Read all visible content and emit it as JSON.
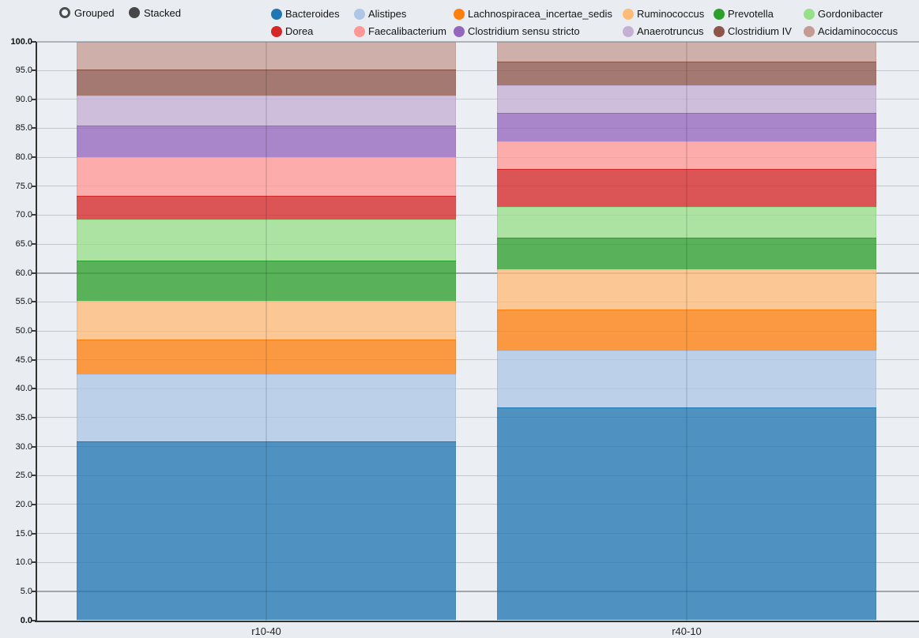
{
  "controls": {
    "options": [
      {
        "label": "Grouped",
        "selected": false
      },
      {
        "label": "Stacked",
        "selected": true
      }
    ]
  },
  "legend": {
    "rows": 2,
    "position": "top"
  },
  "chart_data": {
    "type": "bar",
    "stacked": true,
    "orientation": "vertical",
    "title": "",
    "xlabel": "",
    "ylabel": "",
    "categories": [
      "r10-40",
      "r40-10"
    ],
    "series": [
      {
        "name": "Bacteroides",
        "color": "#1f77b4",
        "values": [
          30.9,
          36.8
        ]
      },
      {
        "name": "Alistipes",
        "color": "#aec7e8",
        "values": [
          11.6,
          9.8
        ]
      },
      {
        "name": "Lachnospiracea_incertae_sedis",
        "color": "#ff7f0e",
        "values": [
          6.0,
          7.1
        ]
      },
      {
        "name": "Ruminococcus",
        "color": "#ffbb78",
        "values": [
          6.7,
          6.9
        ]
      },
      {
        "name": "Prevotella",
        "color": "#2ca02c",
        "values": [
          6.9,
          5.5
        ]
      },
      {
        "name": "Gordonibacter",
        "color": "#98df8a",
        "values": [
          7.1,
          5.3
        ]
      },
      {
        "name": "Dorea",
        "color": "#d62728",
        "values": [
          4.1,
          6.5
        ]
      },
      {
        "name": "Faecalibacterium",
        "color": "#ff9896",
        "values": [
          6.7,
          4.9
        ]
      },
      {
        "name": "Clostridium sensu stricto",
        "color": "#9467bd",
        "values": [
          5.5,
          4.9
        ]
      },
      {
        "name": "Anaerotruncus",
        "color": "#c5b0d5",
        "values": [
          5.1,
          4.7
        ]
      },
      {
        "name": "Clostridium IV",
        "color": "#8c564b",
        "values": [
          4.5,
          4.1
        ]
      },
      {
        "name": "Acidaminococcus",
        "color": "#c49c94",
        "values": [
          4.9,
          3.5
        ]
      }
    ],
    "ylim": [
      0,
      100
    ],
    "ytick_step": 5,
    "ytick_decimals": 1,
    "ytick_bold": [
      0,
      100
    ],
    "grid": true,
    "emphasized_gridlines": [
      60,
      5
    ],
    "legend_position": "top",
    "fill_opacity": 0.77
  }
}
